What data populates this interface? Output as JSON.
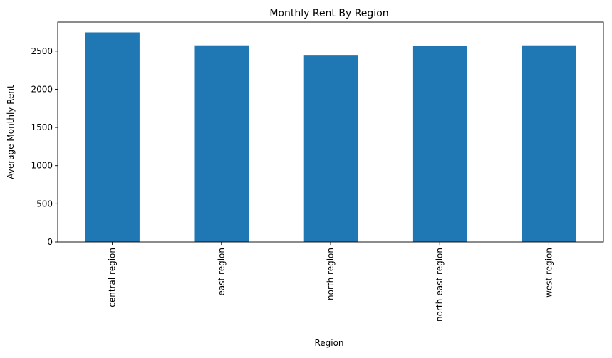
{
  "chart_data": {
    "type": "bar",
    "title": "Monthly Rent By Region",
    "xlabel": "Region",
    "ylabel": "Average Monthly Rent",
    "categories": [
      "central region",
      "east region",
      "north region",
      "north-east region",
      "west region"
    ],
    "values": [
      2745,
      2575,
      2450,
      2565,
      2575
    ],
    "ylim": [
      0,
      2880
    ],
    "yticks": [
      0,
      500,
      1000,
      1500,
      2000,
      2500
    ],
    "grid": false,
    "legend": "none",
    "bar_color": "#1f77b4"
  }
}
